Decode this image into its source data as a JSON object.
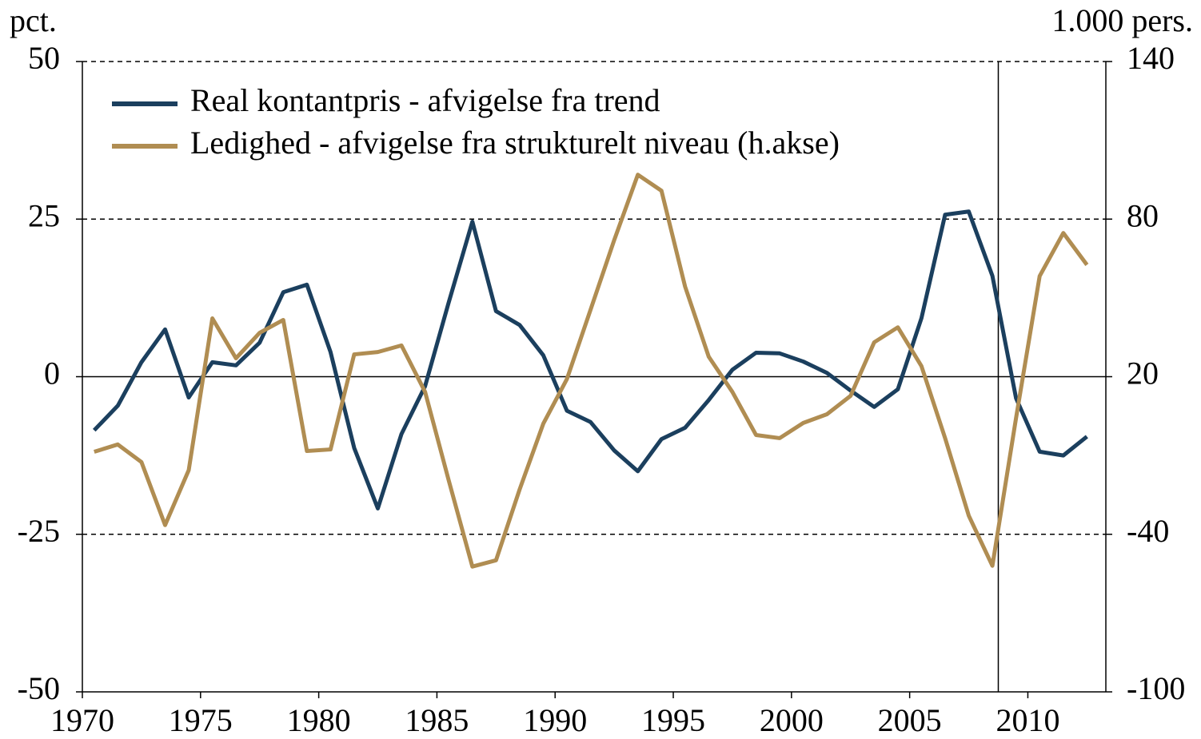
{
  "chart_data": {
    "type": "line",
    "ylabel": "pct.",
    "y2label": "1.000 pers.",
    "x": [
      1970.5,
      1971.5,
      1972.5,
      1973.5,
      1974.5,
      1975.5,
      1976.5,
      1977.5,
      1978.5,
      1979.5,
      1980.5,
      1981.5,
      1982.5,
      1983.5,
      1984.5,
      1985.5,
      1986.5,
      1987.5,
      1988.5,
      1989.5,
      1990.5,
      1991.5,
      1992.5,
      1993.5,
      1994.5,
      1995.5,
      1996.5,
      1997.5,
      1998.5,
      1999.5,
      2000.5,
      2001.5,
      2002.5,
      2003.5,
      2004.5,
      2005.5,
      2006.5,
      2007.5,
      2008.5,
      2009.5,
      2010.5,
      2011.5,
      2012.5
    ],
    "series": [
      {
        "name": "Real kontantpris - afvigelse fra trend",
        "color": "#1b3f5e",
        "values": [
          -8.5,
          -4.6,
          2.3,
          7.5,
          -3.3,
          2.3,
          1.8,
          5.4,
          13.4,
          14.6,
          3.9,
          -11.3,
          -20.9,
          -9.1,
          -1.5,
          11.8,
          24.6,
          10.4,
          8.2,
          3.4,
          -5.4,
          -7.2,
          -11.7,
          -15.0,
          -9.9,
          -8.1,
          -3.7,
          1.1,
          3.8,
          3.7,
          2.4,
          0.6,
          -2.2,
          -4.8,
          -2.0,
          9.3,
          25.7,
          26.2,
          16.0,
          -3.4,
          -11.9,
          -12.5,
          -9.5
        ]
      },
      {
        "name": "Ledighed - afvigelse fra strukturelt niveau (h.akse)",
        "color": "#b08d52",
        "axis": "y2",
        "values": [
          -8.6,
          -5.8,
          -12.5,
          -36.5,
          -15.6,
          42.2,
          27.0,
          36.7,
          41.6,
          -8.3,
          -7.7,
          28.5,
          29.4,
          31.9,
          14.2,
          -19.5,
          -52.3,
          -49.9,
          -22.9,
          2.1,
          19.1,
          45.5,
          72.0,
          96.9,
          90.8,
          54.3,
          27.6,
          14.2,
          -2.2,
          -3.4,
          2.4,
          5.7,
          12.7,
          33.1,
          38.8,
          24.0,
          -3.4,
          -32.9,
          -52.0,
          4.2,
          58.3,
          74.7,
          62.6
        ]
      }
    ],
    "xlim": [
      1970,
      2013.3
    ],
    "xticks": [
      1970,
      1975,
      1980,
      1985,
      1990,
      1995,
      2000,
      2005,
      2010
    ],
    "ylim": [
      -50,
      50
    ],
    "yticks": [
      -50,
      -25,
      0,
      25,
      50
    ],
    "y2lim": [
      -100,
      140
    ],
    "y2ticks": [
      -100,
      -40,
      20,
      80,
      140
    ],
    "vline": 2008.75,
    "grid": true,
    "legend": "upper left"
  }
}
